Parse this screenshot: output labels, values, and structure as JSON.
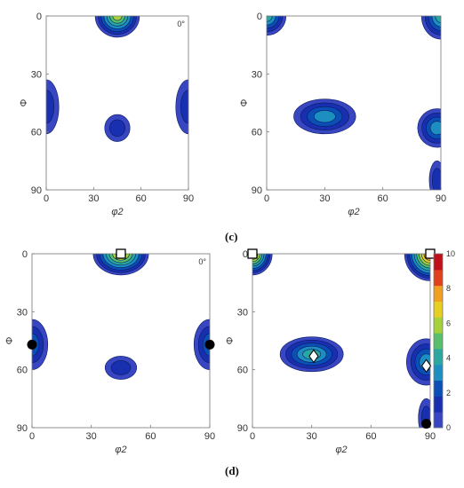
{
  "figure": {
    "label_c": "(c)",
    "label_d": "(d)",
    "angle_note": "0°"
  },
  "colors": {
    "levels": [
      "#3846c2",
      "#1830b0",
      "#0a4fb6",
      "#1c8fc0",
      "#2aa7a0",
      "#58c06a",
      "#a5d23a",
      "#e6cf22",
      "#f0a020",
      "#e0401c",
      "#c0101a"
    ],
    "marker_fill_square": "#ffffff",
    "marker_fill_diamond": "#ffffff",
    "marker_fill_circle": "#000000"
  },
  "chart_data": [
    {
      "type": "heatmap",
      "subtype": "contour",
      "panel": "c-left",
      "xlabel": "φ2",
      "ylabel": "Φ",
      "xlim": [
        0,
        90
      ],
      "ylim": [
        0,
        90
      ],
      "y_reversed": true,
      "xticks": [
        "0",
        "30",
        "60",
        "90"
      ],
      "yticks": [
        "0",
        "30",
        "60",
        "90"
      ],
      "annotation": "0°",
      "peaks": [
        {
          "x": 45,
          "y": 0,
          "level": 7,
          "sx": 14,
          "sy": 11,
          "name": "top-center"
        },
        {
          "x": 0,
          "y": 47,
          "level": 2,
          "sx": 8,
          "sy": 14
        },
        {
          "x": 90,
          "y": 47,
          "level": 2,
          "sx": 8,
          "sy": 14
        },
        {
          "x": 45,
          "y": 58,
          "level": 2,
          "sx": 8,
          "sy": 7
        }
      ]
    },
    {
      "type": "heatmap",
      "subtype": "contour",
      "panel": "c-right",
      "xlabel": "φ2",
      "ylabel": "Φ",
      "xlim": [
        0,
        90
      ],
      "ylim": [
        0,
        90
      ],
      "y_reversed": true,
      "xticks": [
        "0",
        "30",
        "60",
        "90"
      ],
      "yticks": [
        "0",
        "30",
        "60",
        "90"
      ],
      "peaks": [
        {
          "x": 0,
          "y": 0,
          "level": 5,
          "sx": 10,
          "sy": 10
        },
        {
          "x": 90,
          "y": 0,
          "level": 5,
          "sx": 10,
          "sy": 12
        },
        {
          "x": 30,
          "y": 52,
          "level": 4,
          "sx": 16,
          "sy": 9
        },
        {
          "x": 88,
          "y": 58,
          "level": 4,
          "sx": 10,
          "sy": 10
        },
        {
          "x": 88,
          "y": 85,
          "level": 2,
          "sx": 4,
          "sy": 10
        }
      ]
    },
    {
      "type": "heatmap",
      "subtype": "contour",
      "panel": "d-left",
      "xlabel": "φ2",
      "ylabel": "Φ",
      "xlim": [
        0,
        90
      ],
      "ylim": [
        0,
        90
      ],
      "y_reversed": true,
      "xticks": [
        "0",
        "30",
        "60",
        "90"
      ],
      "yticks": [
        "0",
        "30",
        "60",
        "90"
      ],
      "annotation": "0°",
      "peaks": [
        {
          "x": 45,
          "y": 0,
          "level": 8,
          "sx": 14,
          "sy": 11
        },
        {
          "x": 0,
          "y": 47,
          "level": 3,
          "sx": 8,
          "sy": 13
        },
        {
          "x": 90,
          "y": 47,
          "level": 3,
          "sx": 8,
          "sy": 13
        },
        {
          "x": 45,
          "y": 59,
          "level": 2,
          "sx": 8,
          "sy": 6
        }
      ],
      "markers": [
        {
          "shape": "square",
          "x": 45,
          "y": 0
        },
        {
          "shape": "circle",
          "x": 0,
          "y": 47
        },
        {
          "shape": "circle",
          "x": 90,
          "y": 47
        }
      ]
    },
    {
      "type": "heatmap",
      "subtype": "contour",
      "panel": "d-right",
      "xlabel": "φ2",
      "ylabel": "Φ",
      "xlim": [
        0,
        90
      ],
      "ylim": [
        0,
        90
      ],
      "y_reversed": true,
      "xticks": [
        "0",
        "30",
        "60",
        "90"
      ],
      "yticks": [
        "0",
        "30",
        "60",
        "90"
      ],
      "colorbar": {
        "min": 0,
        "max": 10,
        "ticks": [
          "0",
          "2",
          "4",
          "6",
          "8",
          "10"
        ]
      },
      "peaks": [
        {
          "x": 0,
          "y": 0,
          "level": 9,
          "sx": 10,
          "sy": 11
        },
        {
          "x": 90,
          "y": 0,
          "level": 10,
          "sx": 13,
          "sy": 14
        },
        {
          "x": 30,
          "y": 52,
          "level": 5,
          "sx": 16,
          "sy": 9
        },
        {
          "x": 88,
          "y": 56,
          "level": 4,
          "sx": 10,
          "sy": 12
        },
        {
          "x": 88,
          "y": 85,
          "level": 2,
          "sx": 4,
          "sy": 10
        }
      ],
      "markers": [
        {
          "shape": "square",
          "x": 0,
          "y": 0
        },
        {
          "shape": "square",
          "x": 90,
          "y": 0
        },
        {
          "shape": "diamond",
          "x": 31,
          "y": 53
        },
        {
          "shape": "diamond",
          "x": 88,
          "y": 58
        },
        {
          "shape": "circle",
          "x": 88,
          "y": 88
        }
      ]
    }
  ]
}
